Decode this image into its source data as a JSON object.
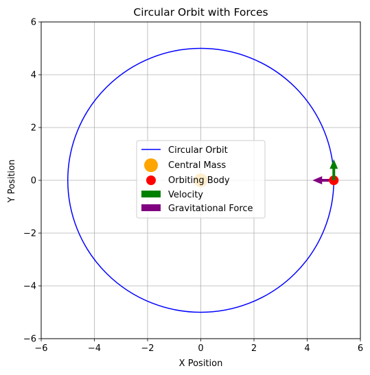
{
  "chart_data": {
    "type": "scatter",
    "title": "Circular Orbit with Forces",
    "xlabel": "X Position",
    "ylabel": "Y Position",
    "xlim": [
      -6,
      6
    ],
    "ylim": [
      -6,
      6
    ],
    "xticks": [
      -6,
      -4,
      -2,
      0,
      2,
      4,
      6
    ],
    "yticks": [
      -6,
      -4,
      -2,
      0,
      2,
      4,
      6
    ],
    "xtick_labels": [
      "−6",
      "−4",
      "−2",
      "0",
      "2",
      "4",
      "6"
    ],
    "ytick_labels": [
      "−6",
      "−4",
      "−2",
      "0",
      "2",
      "4",
      "6"
    ],
    "grid": true,
    "legend_position": "center",
    "orbit": {
      "label": "Circular Orbit",
      "center": [
        0,
        0
      ],
      "radius": 5,
      "color": "#0000ff"
    },
    "central_mass": {
      "label": "Central Mass",
      "x": 0,
      "y": 0,
      "color": "#ffa500"
    },
    "orbiting_body": {
      "label": "Orbiting Body",
      "x": 5,
      "y": 0,
      "color": "#ff0000"
    },
    "velocity": {
      "label": "Velocity",
      "x": 5,
      "y": 0,
      "dx": 0,
      "dy": 0.8,
      "color": "#008000"
    },
    "gravitational_force": {
      "label": "Gravitational Force",
      "x": 5,
      "y": 0,
      "dx": -0.8,
      "dy": 0,
      "color": "#800080"
    }
  }
}
